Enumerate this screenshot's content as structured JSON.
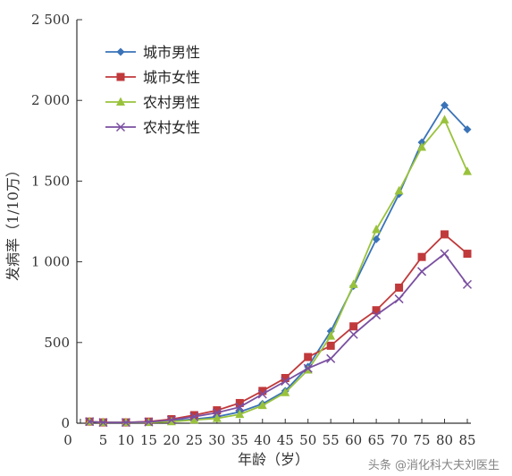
{
  "chart_data": {
    "type": "line",
    "xlabel": "年龄（岁）",
    "ylabel": "发病率（1/10万）",
    "x": [
      0,
      5,
      10,
      15,
      20,
      25,
      30,
      35,
      40,
      45,
      50,
      55,
      60,
      65,
      70,
      75,
      80,
      85
    ],
    "xtick_labels": [
      "0",
      "5",
      "10",
      "15",
      "20",
      "25",
      "30",
      "35",
      "40",
      "45",
      "50",
      "55",
      "60",
      "65",
      "70",
      "75",
      "80",
      "85"
    ],
    "ytick_values": [
      0,
      500,
      1000,
      1500,
      2000,
      2500
    ],
    "ytick_labels": [
      "0",
      "500",
      "1 000",
      "1 500",
      "2 000",
      "2 500"
    ],
    "xlim": [
      0,
      85
    ],
    "ylim": [
      0,
      2500
    ],
    "grid": false,
    "legend_position": "top-left",
    "series": [
      {
        "name": "城市男性",
        "color": "#3a73b8",
        "marker": "diamond",
        "x": [
          2,
          5,
          10,
          15,
          20,
          25,
          30,
          35,
          40,
          45,
          50,
          55,
          60,
          65,
          70,
          75,
          80,
          85
        ],
        "values": [
          10,
          5,
          5,
          8,
          15,
          25,
          40,
          70,
          120,
          200,
          350,
          570,
          850,
          1140,
          1420,
          1740,
          1970,
          1820
        ]
      },
      {
        "name": "城市女性",
        "color": "#c0393b",
        "marker": "square",
        "x": [
          2,
          5,
          10,
          15,
          20,
          25,
          30,
          35,
          40,
          45,
          50,
          55,
          60,
          65,
          70,
          75,
          80,
          85
        ],
        "values": [
          10,
          5,
          5,
          10,
          25,
          50,
          80,
          125,
          200,
          280,
          410,
          480,
          600,
          700,
          840,
          1030,
          1170,
          1050
        ]
      },
      {
        "name": "农村男性",
        "color": "#99c23c",
        "marker": "triangle",
        "x": [
          2,
          5,
          10,
          15,
          20,
          25,
          30,
          35,
          40,
          45,
          50,
          55,
          60,
          65,
          70,
          75,
          80,
          85
        ],
        "values": [
          10,
          5,
          5,
          5,
          10,
          20,
          30,
          55,
          110,
          190,
          330,
          540,
          860,
          1200,
          1440,
          1710,
          1880,
          1560
        ]
      },
      {
        "name": "农村女性",
        "color": "#7a4fa0",
        "marker": "x",
        "x": [
          2,
          5,
          10,
          15,
          20,
          25,
          30,
          35,
          40,
          45,
          50,
          55,
          60,
          65,
          70,
          75,
          80,
          85
        ],
        "values": [
          10,
          5,
          5,
          8,
          20,
          40,
          65,
          100,
          180,
          260,
          340,
          400,
          550,
          670,
          770,
          940,
          1050,
          860
        ]
      }
    ]
  },
  "watermark": "头条 @消化科大夫刘医生"
}
